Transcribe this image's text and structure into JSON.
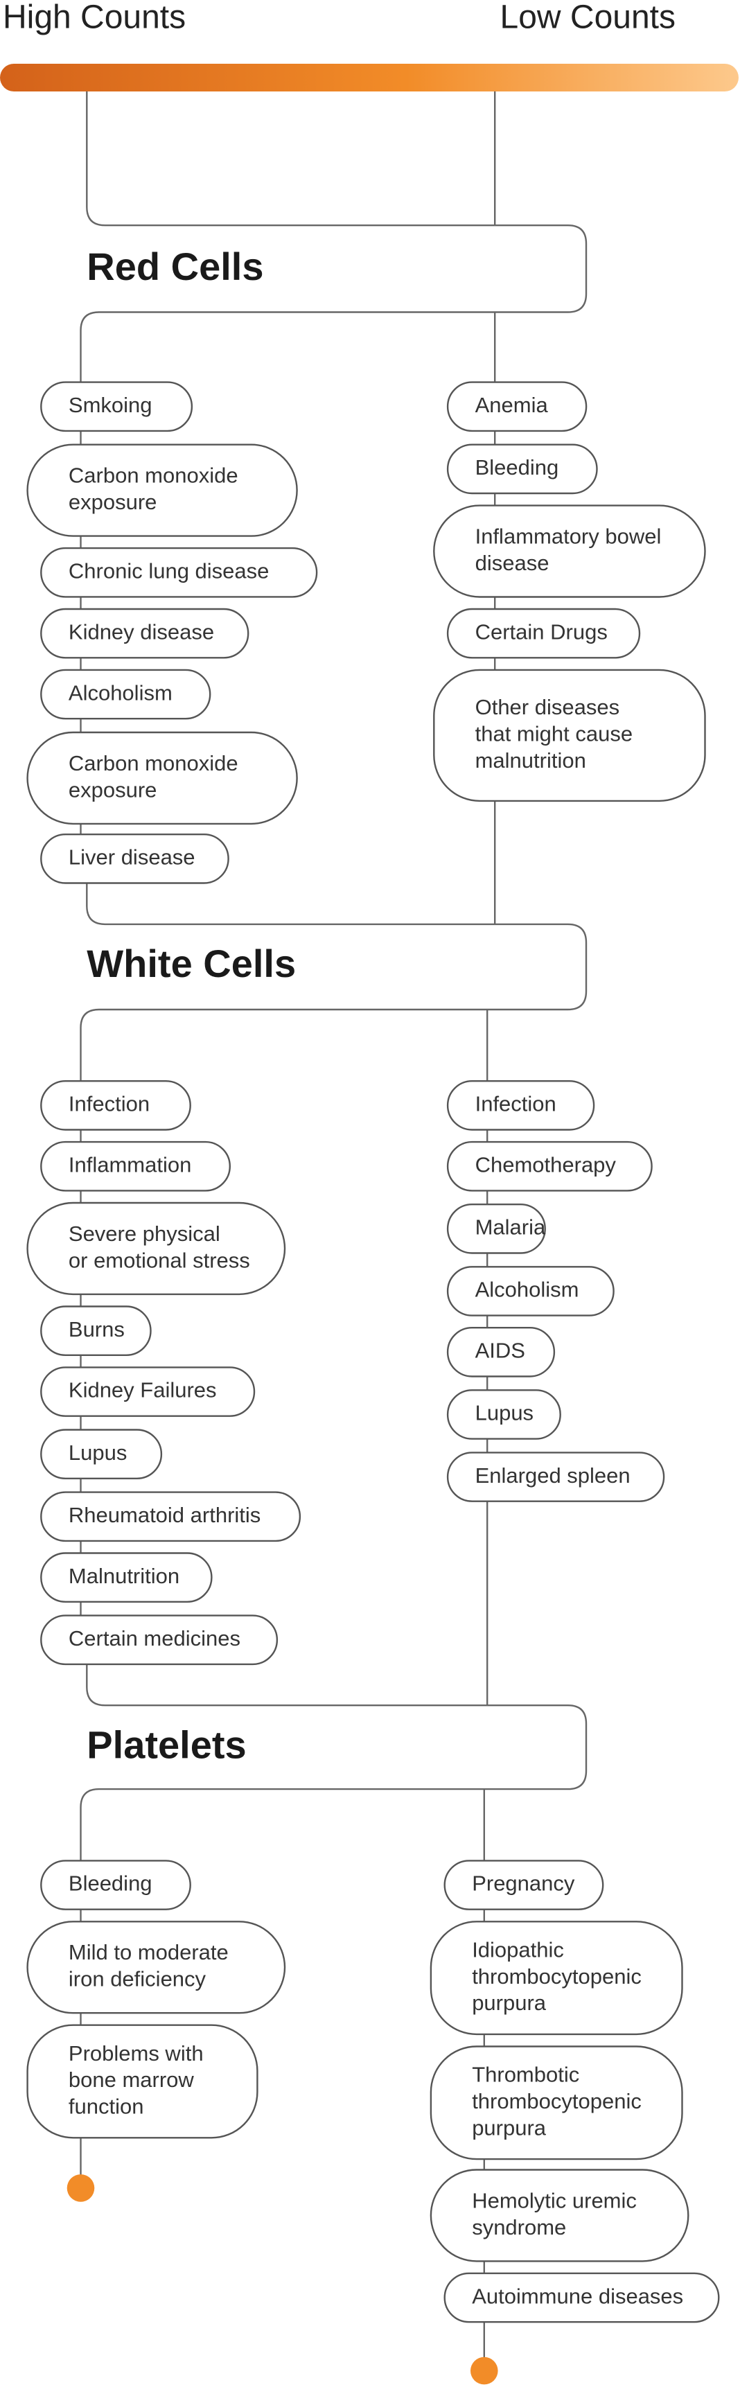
{
  "header": {
    "high": "High Counts",
    "low": "Low Counts"
  },
  "sections": [
    {
      "title": "Red Cells",
      "high": [
        [
          "Smkoing"
        ],
        [
          "Carbon monoxide",
          "exposure"
        ],
        [
          "Chronic lung disease"
        ],
        [
          "Kidney disease"
        ],
        [
          "Alcoholism"
        ],
        [
          "Carbon monoxide",
          "exposure"
        ],
        [
          "Liver disease"
        ]
      ],
      "low": [
        [
          "Anemia"
        ],
        [
          "Bleeding"
        ],
        [
          "Inflammatory bowel",
          "disease"
        ],
        [
          "Certain Drugs"
        ],
        [
          "Other diseases",
          "that might cause",
          "malnutrition"
        ]
      ]
    },
    {
      "title": "White Cells",
      "high": [
        [
          "Infection"
        ],
        [
          "Inflammation"
        ],
        [
          "Severe physical",
          "or emotional stress"
        ],
        [
          "Burns"
        ],
        [
          "Kidney Failures"
        ],
        [
          "Lupus"
        ],
        [
          "Rheumatoid arthritis"
        ],
        [
          "Malnutrition"
        ],
        [
          "Certain medicines"
        ]
      ],
      "low": [
        [
          "Infection"
        ],
        [
          "Chemotherapy"
        ],
        [
          "Malaria"
        ],
        [
          "Alcoholism"
        ],
        [
          "AIDS"
        ],
        [
          "Lupus"
        ],
        [
          "Enlarged spleen"
        ]
      ]
    },
    {
      "title": "Platelets",
      "high": [
        [
          "Bleeding"
        ],
        [
          "Mild to moderate",
          "iron deficiency"
        ],
        [
          "Problems with",
          "bone marrow",
          "function"
        ]
      ],
      "low": [
        [
          "Pregnancy"
        ],
        [
          "Idiopathic",
          "thrombocytopenic",
          "purpura"
        ],
        [
          "Thrombotic",
          "thrombocytopenic",
          "purpura"
        ],
        [
          "Hemolytic uremic",
          "syndrome"
        ],
        [
          "Autoimmune diseases"
        ]
      ]
    }
  ]
}
